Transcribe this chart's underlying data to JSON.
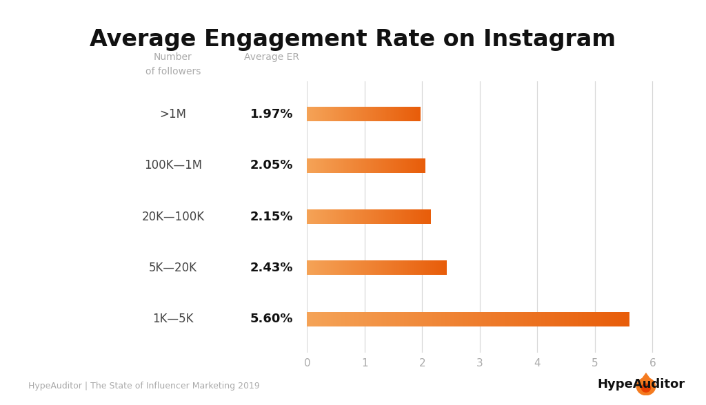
{
  "title": "Average Engagement Rate on Instagram",
  "categories": [
    ">1M",
    "100K—1M",
    "20K—100K",
    "5K—20K",
    "1K—5K"
  ],
  "values": [
    1.97,
    2.05,
    2.15,
    2.43,
    5.6
  ],
  "labels": [
    "1.97%",
    "2.05%",
    "2.15%",
    "2.43%",
    "5.60%"
  ],
  "bar_color_start": "#F5A357",
  "bar_color_end": "#E85D0A",
  "bar_height": 0.28,
  "xlim": [
    0,
    6.5
  ],
  "xticks": [
    0,
    1,
    2,
    3,
    4,
    5,
    6
  ],
  "col1_header_line1": "Number",
  "col1_header_line2": "of followers",
  "col2_header": "Average ER",
  "background_color": "#ffffff",
  "grid_color": "#d8d8d8",
  "title_fontsize": 24,
  "footer_text": "HypeAuditor | The State of Influencer Marketing 2019",
  "footer_color": "#aaaaaa",
  "tick_label_color": "#aaaaaa",
  "header_color": "#aaaaaa",
  "category_color": "#444444",
  "value_label_color": "#111111",
  "n_gradient_steps": 100
}
